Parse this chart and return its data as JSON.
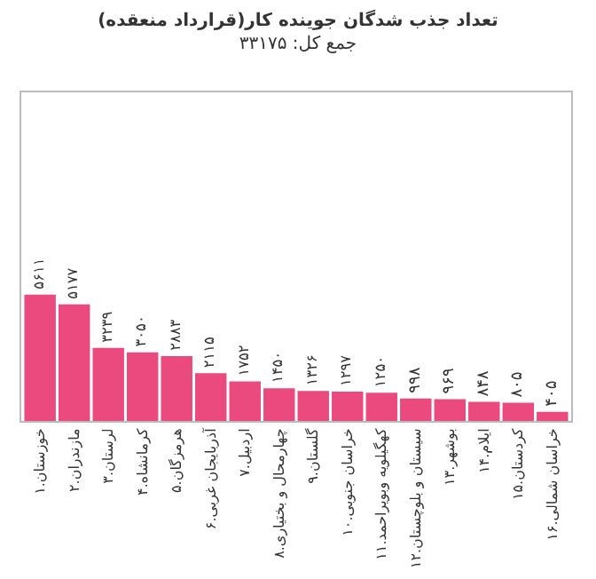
{
  "chart_data": {
    "type": "bar",
    "title": "تعداد جذب شدگان جوینده کار(قرارداد منعقده)",
    "subtitle": "جمع کل: ۳۳۱۷۵",
    "categories": [
      "۱.خوزستان",
      "۲.مازندران",
      "۳.لرستان",
      "۴.کرمانشاه",
      "۵.هرمزگان",
      "۶.آذربایجان غربی",
      "۷.اردبیل",
      "۸.چهارمحال و بختیاری",
      "۹.گلستان",
      "۱۰.خراسان جنوبی",
      "۱۱.کهگیلویه وبویراحمد",
      "۱۲.سیستان و بلوچستان",
      "۱۳.بوشهر",
      "۱۴.ایلام",
      "۱۵.کردستان",
      "۱۶.خراسان شمالی"
    ],
    "values": [
      5611,
      5177,
      3239,
      3050,
      2883,
      2115,
      1752,
      1450,
      1326,
      1297,
      1250,
      998,
      969,
      848,
      805,
      405
    ],
    "value_labels": [
      "۵۶۱۱",
      "۵۱۷۷",
      "۳۲۳۹",
      "۳۰۵۰",
      "۲۸۸۳",
      "۲۱۱۵",
      "۱۷۵۲",
      "۱۴۵۰",
      "۱۳۲۶",
      "۱۲۹۷",
      "۱۲۵۰",
      "۹۹۸",
      "۹۶۹",
      "۸۴۸",
      "۸۰۵",
      "۴۰۵"
    ],
    "color": "#ea4a7e"
  }
}
